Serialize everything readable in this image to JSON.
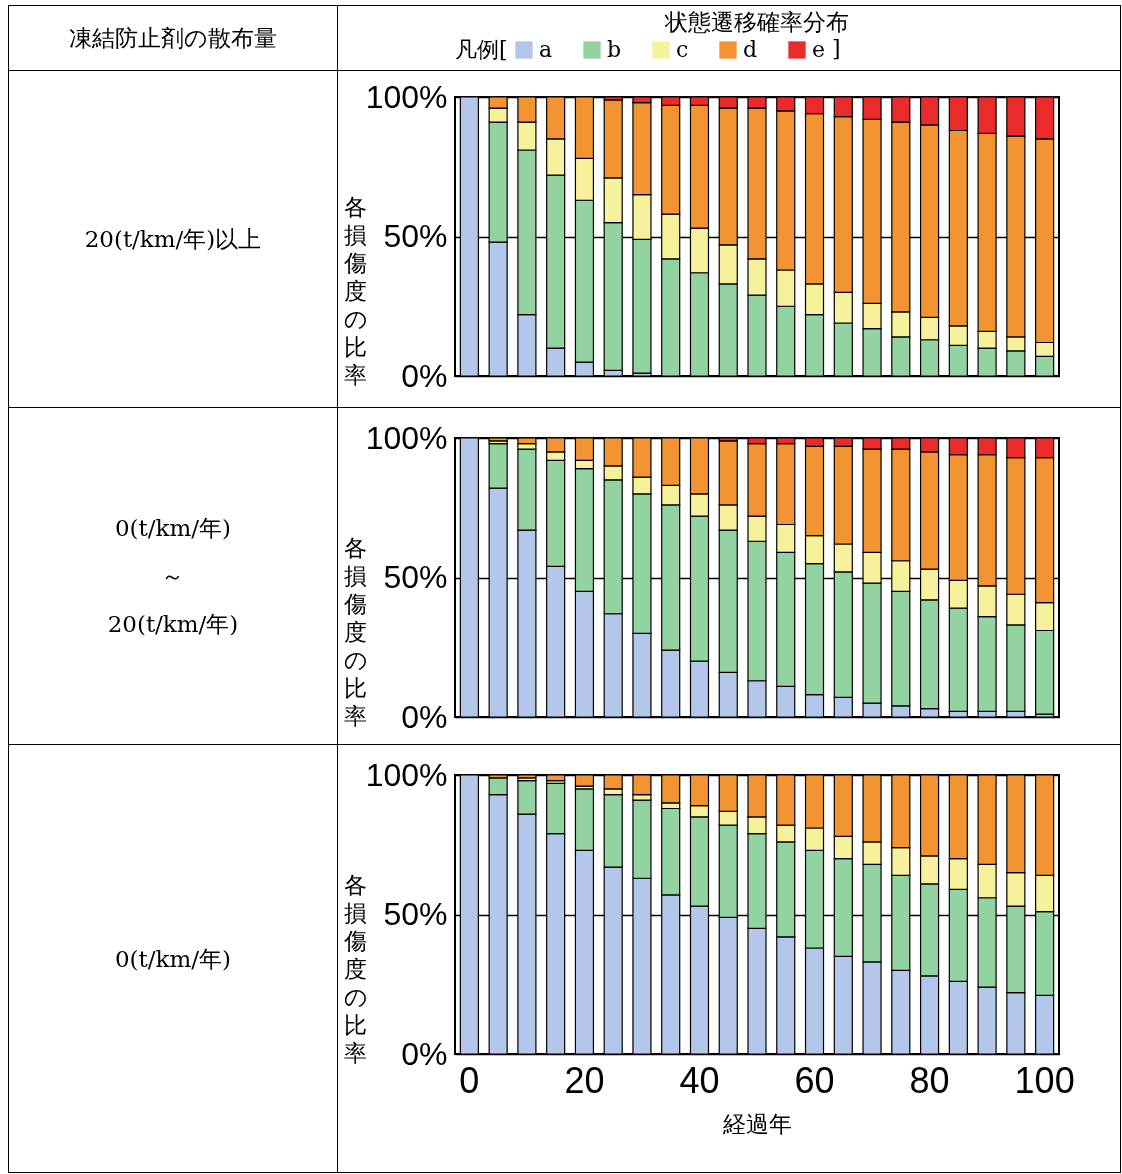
{
  "chart_data": [
    {
      "type": "bar",
      "title": "状態遷移確率分布",
      "subtitle": "20(t/km/年)以上",
      "ylabel": "各損傷度の比率",
      "legend_title": "凡例[",
      "annotations": [
        "凍結防止剤の散布量",
        "]"
      ],
      "stacked": true,
      "legend": "top",
      "grid": "y",
      "tick_labels": "y",
      "categories": [
        null,
        null,
        null,
        null,
        null,
        null,
        null,
        null,
        null,
        null,
        null,
        null,
        null,
        null,
        null,
        null,
        null,
        null,
        null,
        null,
        null
      ],
      "ylim": [
        0,
        100
      ],
      "yticks": [
        {
          "value": 0,
          "label": "0%"
        },
        {
          "value": 50,
          "label": "50%"
        },
        {
          "value": 100,
          "label": "100%"
        }
      ],
      "series": [
        {
          "name": "a",
          "color": "#b3c7ea",
          "values": [
            100,
            48,
            22,
            10,
            5,
            2,
            1,
            0,
            0,
            0,
            0,
            0,
            0,
            0,
            0,
            0,
            0,
            0,
            0,
            0,
            0
          ]
        },
        {
          "name": "b",
          "color": "#93d3a2",
          "values": [
            0,
            43,
            59,
            62,
            58,
            53,
            48,
            42,
            37,
            33,
            29,
            25,
            22,
            19,
            17,
            14,
            13,
            11,
            10,
            9,
            7
          ]
        },
        {
          "name": "c",
          "color": "#f6f19a",
          "values": [
            0,
            5,
            10,
            13,
            15,
            16,
            16,
            16,
            16,
            14,
            13,
            13,
            11,
            11,
            9,
            9,
            8,
            7,
            6,
            5,
            5
          ]
        },
        {
          "name": "d",
          "color": "#f39432",
          "values": [
            0,
            4,
            9,
            15,
            22,
            28,
            33,
            39,
            44,
            49,
            54,
            57,
            61,
            63,
            66,
            68,
            69,
            70,
            71,
            72,
            73
          ]
        },
        {
          "name": "e",
          "color": "#e92b2b",
          "values": [
            0,
            0,
            0,
            0,
            0,
            1,
            2,
            3,
            3,
            4,
            4,
            5,
            6,
            7,
            8,
            9,
            10,
            12,
            13,
            14,
            15
          ]
        }
      ]
    },
    {
      "type": "bar",
      "subtitle": "0(t/km/年)\n～\n20(t/km/年)",
      "ylabel": "各損傷度の比率",
      "stacked": true,
      "grid": "y",
      "tick_labels": "y",
      "categories": [
        null,
        null,
        null,
        null,
        null,
        null,
        null,
        null,
        null,
        null,
        null,
        null,
        null,
        null,
        null,
        null,
        null,
        null,
        null,
        null,
        null
      ],
      "ylim": [
        0,
        100
      ],
      "yticks": [
        {
          "value": 0,
          "label": "0%"
        },
        {
          "value": 50,
          "label": "50%"
        },
        {
          "value": 100,
          "label": "100%"
        }
      ],
      "series": [
        {
          "color": "#b3c7ea",
          "values": [
            100,
            82,
            67,
            54,
            45,
            37,
            30,
            24,
            20,
            16,
            13,
            11,
            8,
            7,
            5,
            4,
            3,
            2,
            2,
            2,
            1
          ]
        },
        {
          "color": "#93d3a2",
          "values": [
            0,
            16,
            29,
            38,
            44,
            48,
            50,
            52,
            52,
            51,
            50,
            48,
            47,
            45,
            43,
            41,
            39,
            37,
            34,
            31,
            30
          ]
        },
        {
          "color": "#f6f19a",
          "values": [
            0,
            1,
            2,
            3,
            3,
            5,
            6,
            7,
            8,
            9,
            9,
            10,
            10,
            10,
            11,
            11,
            11,
            10,
            11,
            11,
            10
          ]
        },
        {
          "color": "#f39432",
          "values": [
            0,
            1,
            2,
            5,
            8,
            10,
            14,
            17,
            20,
            23,
            26,
            29,
            32,
            35,
            37,
            40,
            42,
            45,
            47,
            49,
            52
          ]
        },
        {
          "color": "#e92b2b",
          "values": [
            0,
            0,
            0,
            0,
            0,
            0,
            0,
            0,
            0,
            1,
            2,
            2,
            3,
            3,
            4,
            4,
            5,
            6,
            6,
            7,
            7
          ]
        }
      ]
    },
    {
      "type": "bar",
      "subtitle": "0(t/km/年)",
      "ylabel": "各損傷度の比率",
      "xlabel": "経過年",
      "stacked": true,
      "grid": "y",
      "categories": [
        "0",
        null,
        null,
        null,
        "20",
        null,
        null,
        null,
        "40",
        null,
        null,
        null,
        "60",
        null,
        null,
        null,
        "80",
        null,
        null,
        null,
        "100"
      ],
      "ylim": [
        0,
        100
      ],
      "yticks": [
        {
          "value": 0,
          "label": "0%"
        },
        {
          "value": 50,
          "label": "50%"
        },
        {
          "value": 100,
          "label": "100%"
        }
      ],
      "series": [
        {
          "color": "#b3c7ea",
          "values": [
            100,
            93,
            86,
            79,
            73,
            67,
            63,
            57,
            53,
            49,
            45,
            42,
            38,
            35,
            33,
            30,
            28,
            26,
            24,
            22,
            21
          ]
        },
        {
          "color": "#93d3a2",
          "values": [
            0,
            6,
            12,
            18,
            22,
            26,
            28,
            31,
            32,
            33,
            34,
            34,
            35,
            35,
            35,
            34,
            33,
            33,
            32,
            31,
            30
          ]
        },
        {
          "color": "#f6f19a",
          "values": [
            0,
            0,
            1,
            1,
            1,
            2,
            2,
            2,
            4,
            5,
            6,
            6,
            8,
            8,
            8,
            10,
            10,
            11,
            12,
            12,
            13
          ]
        },
        {
          "color": "#f39432",
          "values": [
            0,
            1,
            1,
            2,
            4,
            5,
            7,
            10,
            11,
            13,
            15,
            18,
            19,
            22,
            24,
            26,
            29,
            30,
            32,
            35,
            36
          ]
        },
        {
          "color": "#e92b2b",
          "values": [
            0,
            0,
            0,
            0,
            0,
            0,
            0,
            0,
            0,
            0,
            0,
            0,
            0,
            0,
            0,
            0,
            0,
            0,
            0,
            0,
            0
          ]
        }
      ]
    }
  ]
}
